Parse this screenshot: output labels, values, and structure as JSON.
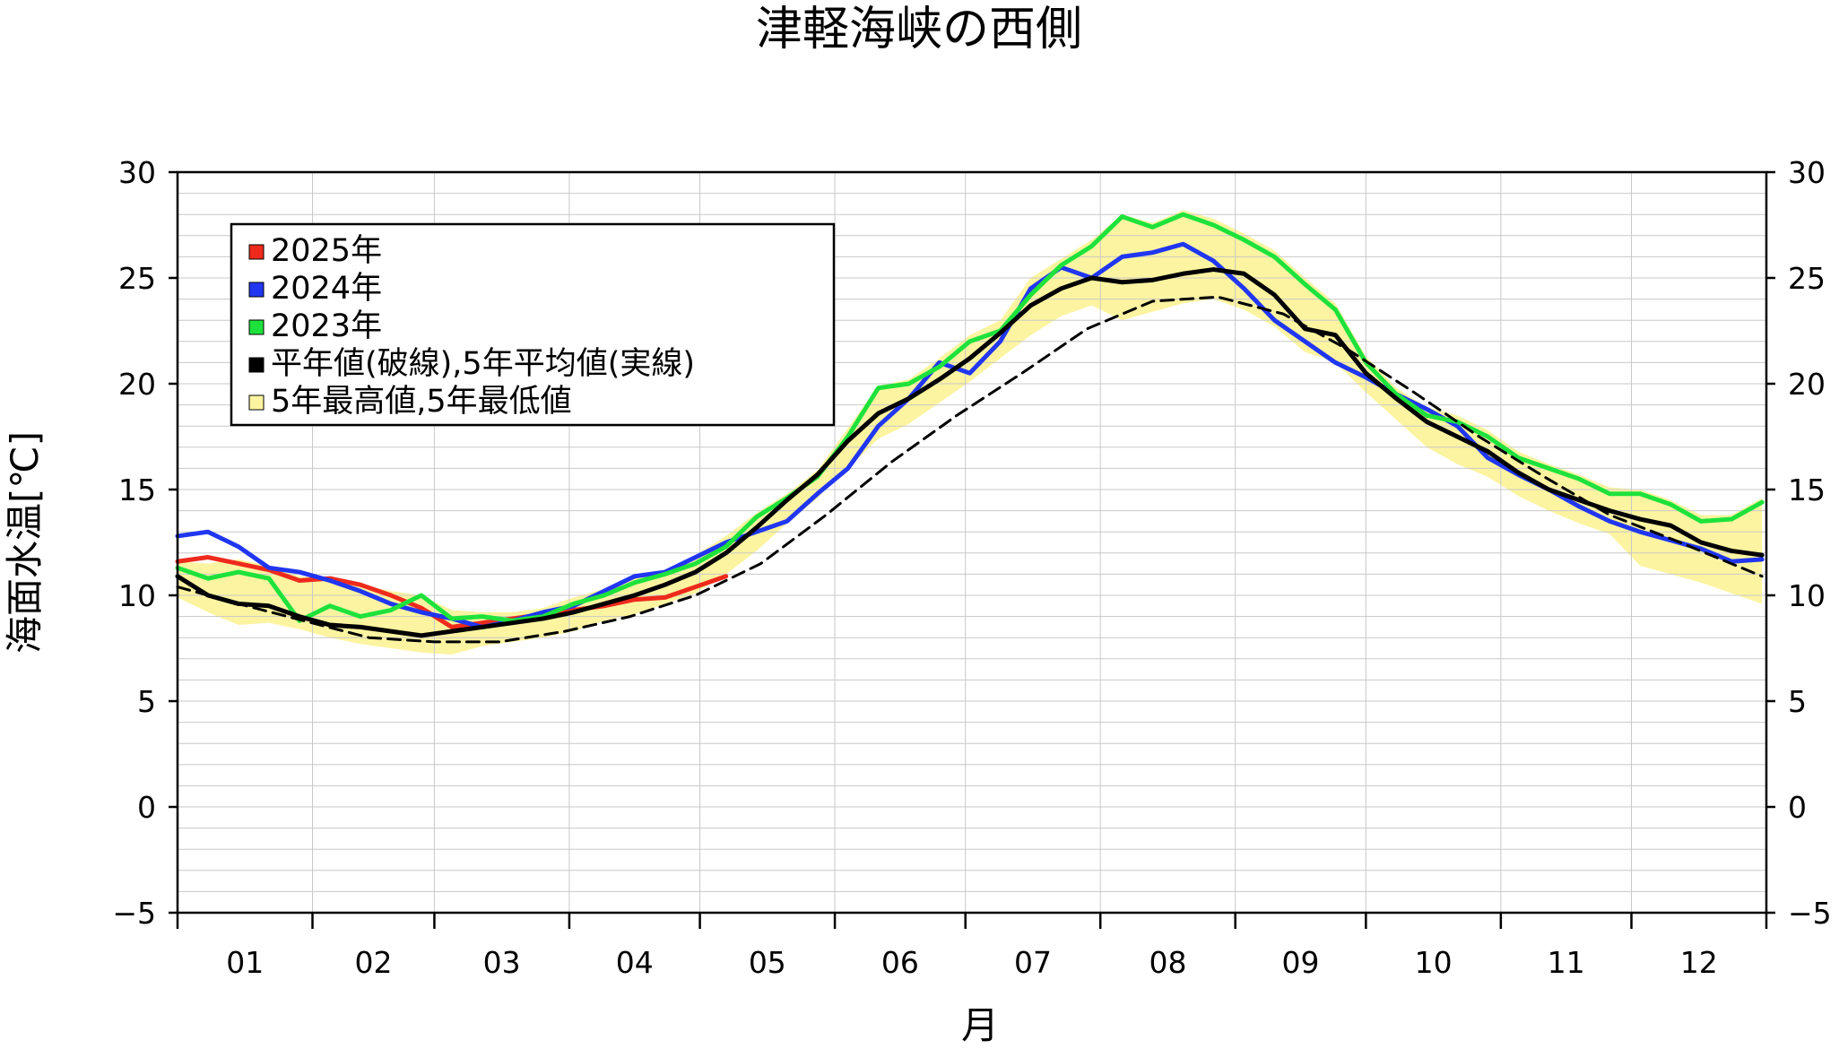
{
  "chart_data": {
    "type": "line",
    "title": "津軽海峡の西側",
    "xlabel": "月",
    "ylabel": "海面水温[℃]",
    "x_categories": [
      "01",
      "02",
      "03",
      "04",
      "05",
      "06",
      "07",
      "08",
      "09",
      "10",
      "11",
      "12"
    ],
    "x_unit": "day_of_year",
    "ylim": [
      -5,
      30
    ],
    "yticks": [
      "−5",
      "0",
      "5",
      "10",
      "15",
      "20",
      "25",
      "30"
    ],
    "grid": true,
    "legend_position": "top-left",
    "legend": [
      {
        "label": "2025年",
        "color": "#ee2a1c"
      },
      {
        "label": "2024年",
        "color": "#2036f0"
      },
      {
        "label": "2023年",
        "color": "#1ee23c"
      },
      {
        "label": "平年値(破線),5年平均値(実線)",
        "color": "#000000"
      },
      {
        "label": "5年最高値,5年最低値",
        "color": "#fcf4a0"
      }
    ],
    "series": [
      {
        "name": "2025年",
        "color": "#ee2a1c",
        "style": "solid",
        "x": [
          1,
          8,
          15,
          22,
          29,
          36,
          43,
          50,
          57,
          64,
          71,
          78,
          85,
          92,
          99,
          106,
          113,
          120,
          127
        ],
        "y": [
          11.6,
          11.8,
          11.5,
          11.2,
          10.7,
          10.8,
          10.5,
          10.0,
          9.4,
          8.5,
          8.7,
          8.9,
          9.1,
          9.3,
          9.5,
          9.8,
          9.9,
          10.4,
          10.9
        ]
      },
      {
        "name": "2024年",
        "color": "#2036f0",
        "style": "solid",
        "x": [
          1,
          8,
          15,
          22,
          29,
          36,
          43,
          50,
          57,
          64,
          71,
          78,
          85,
          92,
          99,
          106,
          113,
          120,
          127,
          134,
          141,
          148,
          155,
          162,
          169,
          176,
          183,
          190,
          197,
          204,
          211,
          218,
          225,
          232,
          239,
          246,
          253,
          260,
          267,
          274,
          281,
          288,
          295,
          302,
          309,
          316,
          323,
          330,
          337,
          344,
          351,
          358,
          365
        ],
        "y": [
          12.8,
          13.0,
          12.3,
          11.3,
          11.1,
          10.7,
          10.2,
          9.6,
          9.2,
          8.9,
          8.5,
          8.8,
          9.2,
          9.5,
          10.2,
          10.9,
          11.1,
          11.8,
          12.5,
          13.0,
          13.5,
          14.8,
          16.0,
          18.0,
          19.3,
          21.0,
          20.5,
          22.0,
          24.5,
          25.5,
          25.0,
          26.0,
          26.2,
          26.6,
          25.8,
          24.5,
          23.0,
          22.0,
          21.0,
          20.3,
          19.5,
          18.8,
          18.0,
          16.5,
          15.7,
          15.0,
          14.2,
          13.5,
          13.0,
          12.6,
          12.2,
          11.6,
          11.7
        ]
      },
      {
        "name": "2023年",
        "color": "#1ee23c",
        "style": "solid",
        "x": [
          1,
          8,
          15,
          22,
          29,
          36,
          43,
          50,
          57,
          64,
          71,
          78,
          85,
          92,
          99,
          106,
          113,
          120,
          127,
          134,
          141,
          148,
          155,
          162,
          169,
          176,
          183,
          190,
          197,
          204,
          211,
          218,
          225,
          232,
          239,
          246,
          253,
          260,
          267,
          274,
          281,
          288,
          295,
          302,
          309,
          316,
          323,
          330,
          337,
          344,
          351,
          358,
          365
        ],
        "y": [
          11.3,
          10.8,
          11.1,
          10.8,
          8.8,
          9.5,
          9.0,
          9.3,
          10.0,
          8.9,
          9.0,
          8.8,
          9.0,
          9.6,
          10.0,
          10.6,
          11.0,
          11.5,
          12.3,
          13.7,
          14.6,
          15.6,
          17.5,
          19.8,
          20.0,
          20.8,
          22.0,
          22.5,
          24.2,
          25.6,
          26.5,
          27.9,
          27.4,
          28.0,
          27.5,
          26.8,
          26.0,
          24.7,
          23.5,
          21.0,
          19.5,
          18.5,
          18.2,
          17.5,
          16.5,
          16.0,
          15.5,
          14.8,
          14.8,
          14.3,
          13.5,
          13.6,
          14.4
        ]
      },
      {
        "name": "",
        "color": "#000000",
        "style": "solid",
        "x": [
          1,
          8,
          15,
          22,
          29,
          36,
          43,
          50,
          57,
          64,
          71,
          78,
          85,
          92,
          99,
          106,
          113,
          120,
          127,
          134,
          141,
          148,
          155,
          162,
          169,
          176,
          183,
          190,
          197,
          204,
          211,
          218,
          225,
          232,
          239,
          246,
          253,
          260,
          267,
          274,
          281,
          288,
          295,
          302,
          309,
          316,
          323,
          330,
          337,
          344,
          351,
          358,
          365
        ],
        "y": [
          10.9,
          10.0,
          9.6,
          9.5,
          9.0,
          8.6,
          8.5,
          8.3,
          8.1,
          8.3,
          8.5,
          8.7,
          8.9,
          9.2,
          9.6,
          10.0,
          10.5,
          11.1,
          12.0,
          13.2,
          14.5,
          15.7,
          17.3,
          18.6,
          19.3,
          20.2,
          21.2,
          22.4,
          23.7,
          24.5,
          25.0,
          24.8,
          24.9,
          25.2,
          25.4,
          25.2,
          24.2,
          22.6,
          22.3,
          20.5,
          19.3,
          18.2,
          17.5,
          16.8,
          15.8,
          15.0,
          14.5,
          14.0,
          13.6,
          13.3,
          12.5,
          12.1,
          11.9
        ]
      },
      {
        "name": "",
        "color": "#000000",
        "style": "dashed",
        "x": [
          1,
          15,
          30,
          45,
          60,
          75,
          90,
          105,
          120,
          135,
          150,
          165,
          180,
          195,
          210,
          225,
          240,
          255,
          270,
          285,
          300,
          315,
          330,
          345,
          365
        ],
        "y": [
          10.4,
          9.6,
          8.8,
          8.0,
          7.8,
          7.8,
          8.3,
          9.0,
          10.0,
          11.5,
          13.8,
          16.3,
          18.5,
          20.5,
          22.6,
          23.9,
          24.1,
          23.3,
          21.6,
          19.6,
          17.5,
          15.6,
          13.8,
          12.6,
          10.9
        ]
      },
      {
        "name": "",
        "color": "#fcf4a0",
        "style": "band",
        "x": [
          1,
          8,
          15,
          22,
          29,
          36,
          43,
          50,
          57,
          64,
          71,
          78,
          85,
          92,
          99,
          106,
          113,
          120,
          127,
          134,
          141,
          148,
          155,
          162,
          169,
          176,
          183,
          190,
          197,
          204,
          211,
          218,
          225,
          232,
          239,
          246,
          253,
          260,
          267,
          274,
          281,
          288,
          295,
          302,
          309,
          316,
          323,
          330,
          337,
          344,
          351,
          358,
          365
        ],
        "y_high": [
          11.6,
          11.5,
          11.7,
          11.4,
          10.9,
          10.8,
          10.5,
          10.2,
          10.0,
          9.3,
          9.2,
          9.2,
          9.4,
          9.9,
          10.3,
          10.9,
          11.2,
          11.9,
          12.8,
          13.9,
          14.8,
          15.9,
          17.9,
          19.9,
          20.2,
          21.2,
          22.3,
          23.0,
          25.0,
          25.9,
          26.8,
          28.0,
          27.6,
          28.2,
          27.8,
          27.1,
          26.3,
          25.0,
          23.8,
          21.3,
          19.8,
          18.9,
          18.5,
          17.8,
          16.8,
          16.2,
          15.7,
          15.1,
          15.0,
          14.5,
          13.8,
          13.8,
          14.6
        ],
        "y_low": [
          9.9,
          9.2,
          8.6,
          8.7,
          8.4,
          8.0,
          7.7,
          7.5,
          7.3,
          7.2,
          7.6,
          7.8,
          8.0,
          8.3,
          8.8,
          9.1,
          9.6,
          10.1,
          11.0,
          12.1,
          13.4,
          14.6,
          16.0,
          17.4,
          18.1,
          19.1,
          20.1,
          21.2,
          22.3,
          23.2,
          23.7,
          23.0,
          23.4,
          23.8,
          24.0,
          23.5,
          22.7,
          21.5,
          21.0,
          19.6,
          18.3,
          17.0,
          16.2,
          15.6,
          14.7,
          14.0,
          13.4,
          12.9,
          11.4,
          11.0,
          10.6,
          10.1,
          9.6
        ]
      }
    ]
  }
}
